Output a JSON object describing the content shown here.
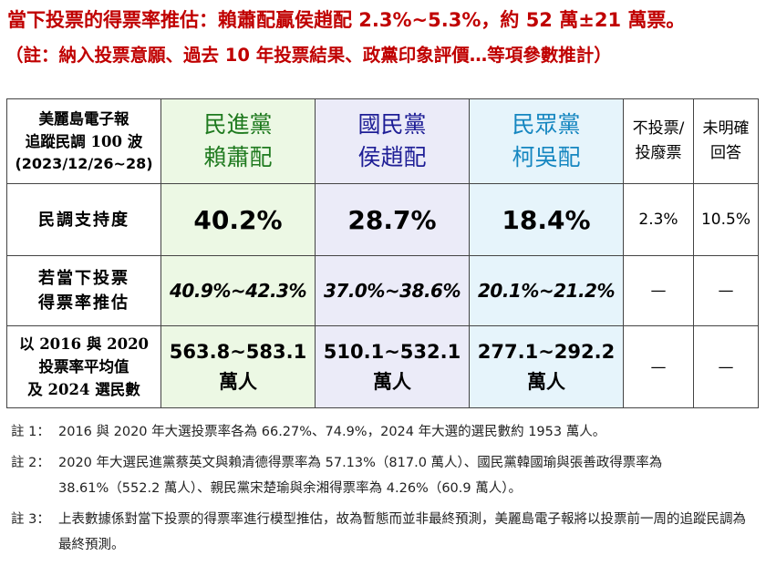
{
  "header": {
    "title": "當下投票的得票率推估：賴蕭配贏侯趙配 2.3%~5.3%，約 52 萬±21 萬票。",
    "subtitle": "（註：納入投票意願、過去 10 年投票結果、政黨印象評價…等項參數推計）"
  },
  "table": {
    "corner": {
      "line1": "美麗島電子報",
      "line2": "追蹤民調 100 波",
      "line3": "(2023/12/26~28)"
    },
    "columns": [
      {
        "line1": "民進黨",
        "line2": "賴蕭配",
        "color": "#1f7a1f"
      },
      {
        "line1": "國民黨",
        "line2": "侯趙配",
        "color": "#1e1e96"
      },
      {
        "line1": "民眾黨",
        "line2": "柯吳配",
        "color": "#1586c0"
      },
      {
        "line1": "不投票/",
        "line2": "投廢票"
      },
      {
        "line1": "未明確",
        "line2": "回答"
      }
    ],
    "rows": [
      {
        "label": "民調支持度",
        "values": [
          "40.2%",
          "28.7%",
          "18.4%",
          "2.3%",
          "10.5%"
        ]
      },
      {
        "label_line1": "若當下投票",
        "label_line2": "得票率推估",
        "values": [
          "40.9%~42.3%",
          "37.0%~38.6%",
          "20.1%~21.2%",
          "—",
          "—"
        ]
      },
      {
        "label_line1": "以 2016 與 2020",
        "label_line2": "投票率平均值",
        "label_line3": "及 2024 選民數",
        "values": [
          {
            "range": "563.8~583.1",
            "unit": "萬人"
          },
          {
            "range": "510.1~532.1",
            "unit": "萬人"
          },
          {
            "range": "277.1~292.2",
            "unit": "萬人"
          },
          "—",
          "—"
        ]
      }
    ],
    "column_colors": {
      "dpp_bg": "#ecf8e4",
      "kmt_bg": "#ebebf8",
      "tpp_bg": "#e6f4fb"
    }
  },
  "notes": [
    {
      "label": "註 1：",
      "text": "2016 與 2020 年大選投票率各為 66.27%、74.9%，2024 年大選的選民數約 1953 萬人。"
    },
    {
      "label": "註 2：",
      "text": "2020 年大選民進黨蔡英文與賴清德得票率為 57.13%（817.0 萬人）、國民黨韓國瑜與張善政得票率為 38.61%（552.2 萬人）、親民黨宋楚瑜與余湘得票率為 4.26%（60.9 萬人）。"
    },
    {
      "label": "註 3：",
      "text": "上表數據係對當下投票的得票率進行模型推估，故為暫態而並非最終預測，美麗島電子報將以投票前一周的追蹤民調為最終預測。"
    }
  ]
}
